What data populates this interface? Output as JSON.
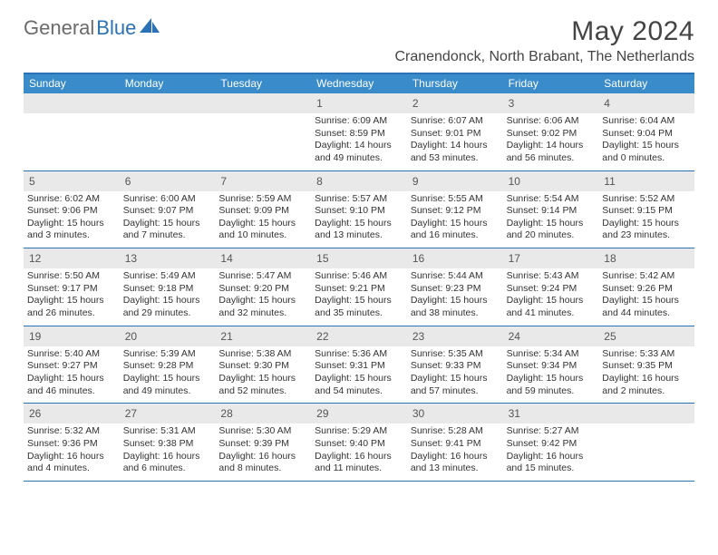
{
  "logo": {
    "part1": "General",
    "part2": "Blue"
  },
  "title": "May 2024",
  "location": "Cranendonck, North Brabant, The Netherlands",
  "colors": {
    "header_bar": "#3a8bc9",
    "border": "#2a72b5",
    "daynum_bg": "#e9e9e9",
    "text": "#333333",
    "title_text": "#444444",
    "logo_grey": "#6b6b6b",
    "logo_blue": "#2a72b5",
    "white": "#ffffff"
  },
  "dow": [
    "Sunday",
    "Monday",
    "Tuesday",
    "Wednesday",
    "Thursday",
    "Friday",
    "Saturday"
  ],
  "weeks": [
    [
      {
        "n": "",
        "sr": "",
        "ss": "",
        "dl": ""
      },
      {
        "n": "",
        "sr": "",
        "ss": "",
        "dl": ""
      },
      {
        "n": "",
        "sr": "",
        "ss": "",
        "dl": ""
      },
      {
        "n": "1",
        "sr": "Sunrise: 6:09 AM",
        "ss": "Sunset: 8:59 PM",
        "dl": "Daylight: 14 hours and 49 minutes."
      },
      {
        "n": "2",
        "sr": "Sunrise: 6:07 AM",
        "ss": "Sunset: 9:01 PM",
        "dl": "Daylight: 14 hours and 53 minutes."
      },
      {
        "n": "3",
        "sr": "Sunrise: 6:06 AM",
        "ss": "Sunset: 9:02 PM",
        "dl": "Daylight: 14 hours and 56 minutes."
      },
      {
        "n": "4",
        "sr": "Sunrise: 6:04 AM",
        "ss": "Sunset: 9:04 PM",
        "dl": "Daylight: 15 hours and 0 minutes."
      }
    ],
    [
      {
        "n": "5",
        "sr": "Sunrise: 6:02 AM",
        "ss": "Sunset: 9:06 PM",
        "dl": "Daylight: 15 hours and 3 minutes."
      },
      {
        "n": "6",
        "sr": "Sunrise: 6:00 AM",
        "ss": "Sunset: 9:07 PM",
        "dl": "Daylight: 15 hours and 7 minutes."
      },
      {
        "n": "7",
        "sr": "Sunrise: 5:59 AM",
        "ss": "Sunset: 9:09 PM",
        "dl": "Daylight: 15 hours and 10 minutes."
      },
      {
        "n": "8",
        "sr": "Sunrise: 5:57 AM",
        "ss": "Sunset: 9:10 PM",
        "dl": "Daylight: 15 hours and 13 minutes."
      },
      {
        "n": "9",
        "sr": "Sunrise: 5:55 AM",
        "ss": "Sunset: 9:12 PM",
        "dl": "Daylight: 15 hours and 16 minutes."
      },
      {
        "n": "10",
        "sr": "Sunrise: 5:54 AM",
        "ss": "Sunset: 9:14 PM",
        "dl": "Daylight: 15 hours and 20 minutes."
      },
      {
        "n": "11",
        "sr": "Sunrise: 5:52 AM",
        "ss": "Sunset: 9:15 PM",
        "dl": "Daylight: 15 hours and 23 minutes."
      }
    ],
    [
      {
        "n": "12",
        "sr": "Sunrise: 5:50 AM",
        "ss": "Sunset: 9:17 PM",
        "dl": "Daylight: 15 hours and 26 minutes."
      },
      {
        "n": "13",
        "sr": "Sunrise: 5:49 AM",
        "ss": "Sunset: 9:18 PM",
        "dl": "Daylight: 15 hours and 29 minutes."
      },
      {
        "n": "14",
        "sr": "Sunrise: 5:47 AM",
        "ss": "Sunset: 9:20 PM",
        "dl": "Daylight: 15 hours and 32 minutes."
      },
      {
        "n": "15",
        "sr": "Sunrise: 5:46 AM",
        "ss": "Sunset: 9:21 PM",
        "dl": "Daylight: 15 hours and 35 minutes."
      },
      {
        "n": "16",
        "sr": "Sunrise: 5:44 AM",
        "ss": "Sunset: 9:23 PM",
        "dl": "Daylight: 15 hours and 38 minutes."
      },
      {
        "n": "17",
        "sr": "Sunrise: 5:43 AM",
        "ss": "Sunset: 9:24 PM",
        "dl": "Daylight: 15 hours and 41 minutes."
      },
      {
        "n": "18",
        "sr": "Sunrise: 5:42 AM",
        "ss": "Sunset: 9:26 PM",
        "dl": "Daylight: 15 hours and 44 minutes."
      }
    ],
    [
      {
        "n": "19",
        "sr": "Sunrise: 5:40 AM",
        "ss": "Sunset: 9:27 PM",
        "dl": "Daylight: 15 hours and 46 minutes."
      },
      {
        "n": "20",
        "sr": "Sunrise: 5:39 AM",
        "ss": "Sunset: 9:28 PM",
        "dl": "Daylight: 15 hours and 49 minutes."
      },
      {
        "n": "21",
        "sr": "Sunrise: 5:38 AM",
        "ss": "Sunset: 9:30 PM",
        "dl": "Daylight: 15 hours and 52 minutes."
      },
      {
        "n": "22",
        "sr": "Sunrise: 5:36 AM",
        "ss": "Sunset: 9:31 PM",
        "dl": "Daylight: 15 hours and 54 minutes."
      },
      {
        "n": "23",
        "sr": "Sunrise: 5:35 AM",
        "ss": "Sunset: 9:33 PM",
        "dl": "Daylight: 15 hours and 57 minutes."
      },
      {
        "n": "24",
        "sr": "Sunrise: 5:34 AM",
        "ss": "Sunset: 9:34 PM",
        "dl": "Daylight: 15 hours and 59 minutes."
      },
      {
        "n": "25",
        "sr": "Sunrise: 5:33 AM",
        "ss": "Sunset: 9:35 PM",
        "dl": "Daylight: 16 hours and 2 minutes."
      }
    ],
    [
      {
        "n": "26",
        "sr": "Sunrise: 5:32 AM",
        "ss": "Sunset: 9:36 PM",
        "dl": "Daylight: 16 hours and 4 minutes."
      },
      {
        "n": "27",
        "sr": "Sunrise: 5:31 AM",
        "ss": "Sunset: 9:38 PM",
        "dl": "Daylight: 16 hours and 6 minutes."
      },
      {
        "n": "28",
        "sr": "Sunrise: 5:30 AM",
        "ss": "Sunset: 9:39 PM",
        "dl": "Daylight: 16 hours and 8 minutes."
      },
      {
        "n": "29",
        "sr": "Sunrise: 5:29 AM",
        "ss": "Sunset: 9:40 PM",
        "dl": "Daylight: 16 hours and 11 minutes."
      },
      {
        "n": "30",
        "sr": "Sunrise: 5:28 AM",
        "ss": "Sunset: 9:41 PM",
        "dl": "Daylight: 16 hours and 13 minutes."
      },
      {
        "n": "31",
        "sr": "Sunrise: 5:27 AM",
        "ss": "Sunset: 9:42 PM",
        "dl": "Daylight: 16 hours and 15 minutes."
      },
      {
        "n": "",
        "sr": "",
        "ss": "",
        "dl": ""
      }
    ]
  ]
}
